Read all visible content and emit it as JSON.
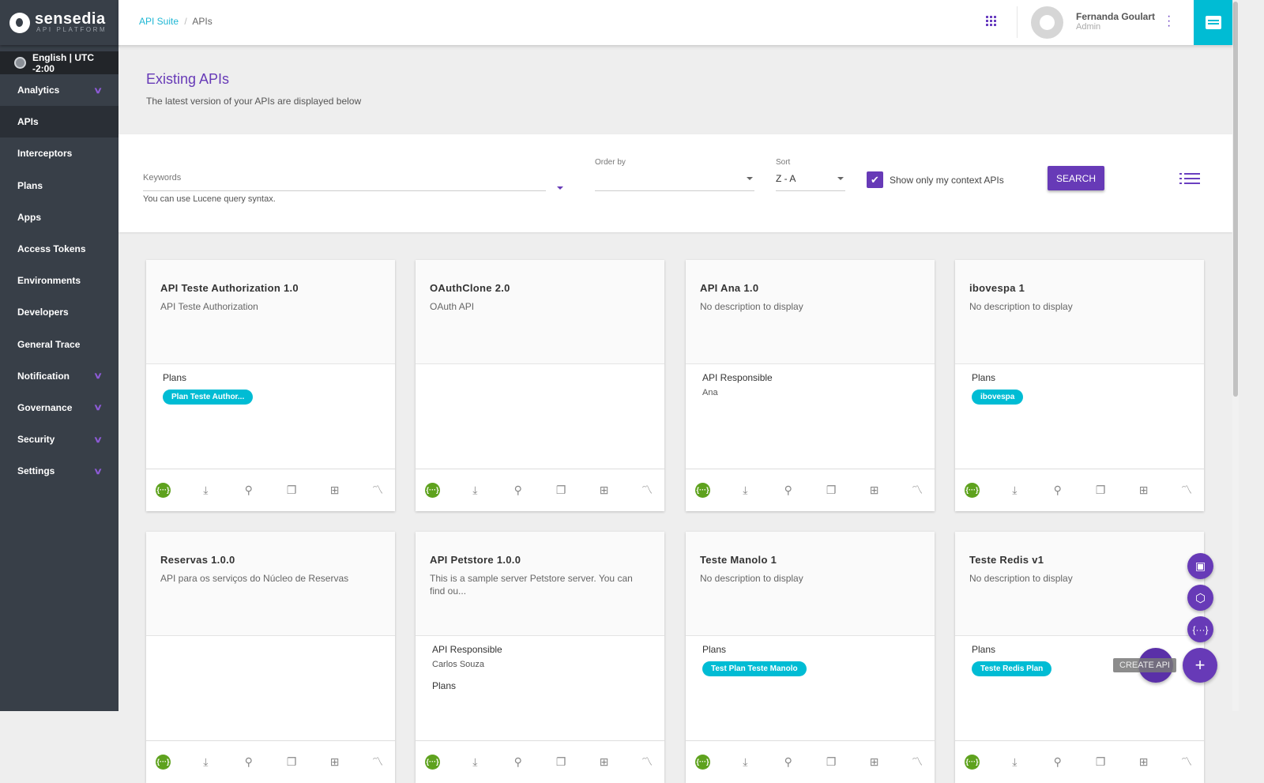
{
  "brand": {
    "name": "sensedia",
    "sub": "API PLATFORM"
  },
  "language": "English | UTC -2:00",
  "sidebar": {
    "items": [
      {
        "label": "Analytics",
        "expand": true
      },
      {
        "label": "APIs",
        "active": true
      },
      {
        "label": "Interceptors"
      },
      {
        "label": "Plans"
      },
      {
        "label": "Apps"
      },
      {
        "label": "Access Tokens"
      },
      {
        "label": "Environments"
      },
      {
        "label": "Developers"
      },
      {
        "label": "General Trace"
      },
      {
        "label": "Notification",
        "expand": true
      },
      {
        "label": "Governance",
        "expand": true
      },
      {
        "label": "Security",
        "expand": true
      },
      {
        "label": "Settings",
        "expand": true
      }
    ]
  },
  "breadcrumb": {
    "root": "API Suite",
    "sep": "/",
    "current": "APIs"
  },
  "user": {
    "name": "Fernanda Goulart",
    "role": "Admin"
  },
  "header": {
    "title": "Existing APIs",
    "subtitle": "The latest version of your APIs are displayed below"
  },
  "filters": {
    "keywords_label": "Keywords",
    "keywords_value": "",
    "keywords_hint": "You can use Lucene query syntax.",
    "order_label": "Order by",
    "order_value": "",
    "sort_label": "Sort",
    "sort_value": "Z - A",
    "context_label": "Show only my context APIs",
    "context_checked": true,
    "search_label": "SEARCH"
  },
  "cards": [
    {
      "title": "API Teste Authorization 1.0",
      "desc": "API Teste Authorization",
      "sections": [
        {
          "label": "Plans",
          "chips": [
            "Plan Teste Author..."
          ]
        }
      ]
    },
    {
      "title": "OAuthClone 2.0",
      "desc": "OAuth API",
      "sections": []
    },
    {
      "title": "API Ana 1.0",
      "desc": "No description to display",
      "sections": [
        {
          "label": "API Responsible",
          "value": "Ana"
        }
      ]
    },
    {
      "title": "ibovespa 1",
      "desc": "No description to display",
      "sections": [
        {
          "label": "Plans",
          "chips": [
            "ibovespa"
          ]
        }
      ]
    },
    {
      "title": "Reservas 1.0.0",
      "desc": "API para os serviços do Núcleo de Reservas",
      "sections": []
    },
    {
      "title": "API Petstore 1.0.0",
      "desc": "This is a sample server Petstore server. You can find ou...",
      "sections": [
        {
          "label": "API Responsible",
          "value": "Carlos Souza"
        },
        {
          "label": "Plans",
          "chips": []
        }
      ]
    },
    {
      "title": "Teste Manolo 1",
      "desc": "No description to display",
      "sections": [
        {
          "label": "Plans",
          "chips": [
            "Test Plan Teste Manolo"
          ]
        }
      ]
    },
    {
      "title": "Teste Redis v1",
      "desc": "No description to display",
      "sections": [
        {
          "label": "Plans",
          "chips": [
            "Teste Redis Plan"
          ]
        }
      ]
    }
  ],
  "card_actions": [
    "swagger-icon",
    "download-icon",
    "search-icon",
    "clone-icon",
    "add-version-icon",
    "analytics-icon"
  ],
  "fab": {
    "tooltip": "CREATE API",
    "plus": "+"
  },
  "colors": {
    "accent": "#673ab7",
    "chip": "#00bcd4",
    "sidebar": "#383f48",
    "swagger": "#5ea21e"
  }
}
